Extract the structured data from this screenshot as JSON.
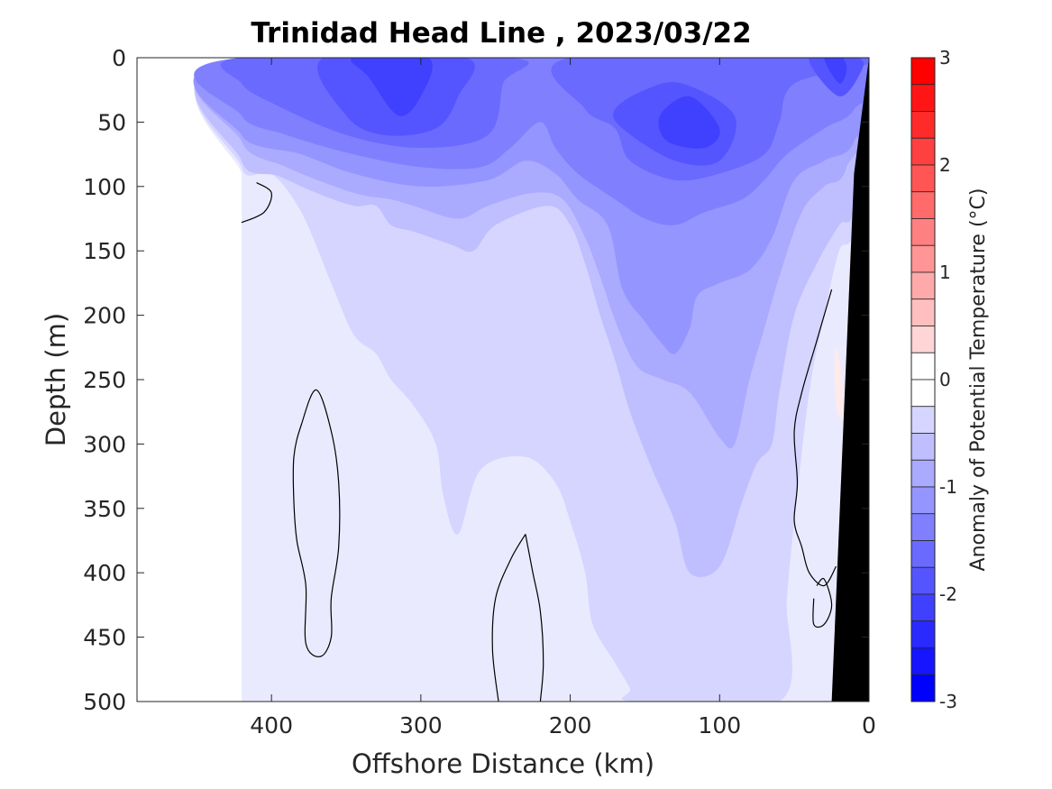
{
  "chart_data": {
    "type": "heatmap",
    "title": "Trinidad Head Line , 2023/03/22",
    "xlabel": "Offshore Distance (km)",
    "ylabel": "Depth (m)",
    "xlim": [
      490,
      0
    ],
    "ylim": [
      500,
      0
    ],
    "x_reversed": true,
    "y_reversed": true,
    "x_ticks": [
      400,
      300,
      200,
      100,
      0
    ],
    "y_ticks": [
      0,
      50,
      100,
      150,
      200,
      250,
      300,
      350,
      400,
      450,
      500
    ],
    "data_extent_km": [
      0,
      420
    ],
    "colorbar": {
      "label": "Anomaly of Potential Temperature (°C)",
      "range": [
        -3,
        3
      ],
      "step": 0.25,
      "ticks": [
        3,
        2,
        1,
        0,
        -1,
        -2,
        -3
      ],
      "colors": {
        "neg_3": "#0000ff",
        "zero": "#ffffff",
        "pos_3": "#ff0000"
      }
    },
    "levels": [
      -2.25,
      -2.0,
      -1.75,
      -1.5,
      -1.25,
      -1.0,
      -0.75,
      -0.5,
      -0.25,
      0.25
    ],
    "contours": [
      {
        "level": -2.25,
        "region": [
          [
            345,
            0
          ],
          [
            335,
            15
          ],
          [
            315,
            45
          ],
          [
            300,
            30
          ],
          [
            295,
            0
          ]
        ]
      },
      {
        "level": -2.25,
        "region": [
          [
            140,
            45
          ],
          [
            120,
            30
          ],
          [
            100,
            55
          ],
          [
            110,
            70
          ],
          [
            135,
            65
          ]
        ]
      },
      {
        "level": -2.25,
        "region": [
          [
            30,
            0
          ],
          [
            20,
            20
          ],
          [
            15,
            10
          ],
          [
            18,
            0
          ]
        ]
      },
      {
        "level": -2.0,
        "region": [
          [
            365,
            0
          ],
          [
            350,
            45
          ],
          [
            325,
            60
          ],
          [
            290,
            55
          ],
          [
            275,
            30
          ],
          [
            270,
            0
          ]
        ]
      },
      {
        "level": -2.0,
        "region": [
          [
            170,
            40
          ],
          [
            150,
            25
          ],
          [
            125,
            20
          ],
          [
            90,
            45
          ],
          [
            100,
            80
          ],
          [
            130,
            80
          ],
          [
            165,
            55
          ]
        ]
      },
      {
        "level": -2.0,
        "region": [
          [
            40,
            0
          ],
          [
            20,
            30
          ],
          [
            5,
            10
          ],
          [
            8,
            0
          ]
        ]
      },
      {
        "level": -1.75,
        "region": [
          [
            420,
            0
          ],
          [
            420,
            20
          ],
          [
            400,
            35
          ],
          [
            350,
            60
          ],
          [
            300,
            70
          ],
          [
            255,
            60
          ],
          [
            245,
            20
          ],
          [
            240,
            0
          ]
        ]
      },
      {
        "level": -1.75,
        "region": [
          [
            200,
            0
          ],
          [
            190,
            40
          ],
          [
            170,
            55
          ],
          [
            160,
            80
          ],
          [
            130,
            95
          ],
          [
            100,
            90
          ],
          [
            70,
            75
          ],
          [
            60,
            50
          ],
          [
            50,
            20
          ],
          [
            0,
            0
          ]
        ]
      },
      {
        "level": -1.5,
        "region": [
          [
            420,
            0
          ],
          [
            420,
            45
          ],
          [
            390,
            60
          ],
          [
            345,
            75
          ],
          [
            300,
            85
          ],
          [
            260,
            85
          ],
          [
            240,
            70
          ],
          [
            220,
            50
          ],
          [
            210,
            70
          ],
          [
            195,
            90
          ],
          [
            170,
            110
          ],
          [
            150,
            125
          ],
          [
            130,
            130
          ],
          [
            110,
            120
          ],
          [
            85,
            110
          ],
          [
            70,
            95
          ],
          [
            55,
            75
          ],
          [
            30,
            55
          ],
          [
            10,
            40
          ],
          [
            5,
            0
          ]
        ]
      },
      {
        "level": -1.25,
        "region": [
          [
            420,
            0
          ],
          [
            420,
            60
          ],
          [
            380,
            75
          ],
          [
            345,
            90
          ],
          [
            300,
            100
          ],
          [
            255,
            95
          ],
          [
            230,
            80
          ],
          [
            210,
            90
          ],
          [
            195,
            110
          ],
          [
            175,
            130
          ],
          [
            165,
            180
          ],
          [
            150,
            205
          ],
          [
            140,
            220
          ],
          [
            130,
            230
          ],
          [
            120,
            210
          ],
          [
            115,
            185
          ],
          [
            100,
            175
          ],
          [
            80,
            165
          ],
          [
            65,
            140
          ],
          [
            50,
            95
          ],
          [
            30,
            80
          ],
          [
            10,
            65
          ],
          [
            5,
            0
          ]
        ]
      },
      {
        "level": -1.0,
        "region": [
          [
            420,
            0
          ],
          [
            420,
            65
          ],
          [
            390,
            85
          ],
          [
            345,
            105
          ],
          [
            320,
            110
          ],
          [
            305,
            115
          ],
          [
            275,
            125
          ],
          [
            255,
            115
          ],
          [
            225,
            105
          ],
          [
            205,
            110
          ],
          [
            190,
            140
          ],
          [
            180,
            170
          ],
          [
            168,
            210
          ],
          [
            155,
            240
          ],
          [
            138,
            250
          ],
          [
            120,
            260
          ],
          [
            100,
            295
          ],
          [
            90,
            300
          ],
          [
            80,
            250
          ],
          [
            70,
            210
          ],
          [
            60,
            170
          ],
          [
            45,
            120
          ],
          [
            30,
            100
          ],
          [
            15,
            85
          ],
          [
            5,
            0
          ]
        ]
      },
      {
        "level": -0.75,
        "region": [
          [
            420,
            0
          ],
          [
            420,
            80
          ],
          [
            395,
            92
          ],
          [
            370,
            105
          ],
          [
            345,
            115
          ],
          [
            330,
            115
          ],
          [
            320,
            130
          ],
          [
            305,
            135
          ],
          [
            280,
            145
          ],
          [
            265,
            150
          ],
          [
            250,
            130
          ],
          [
            215,
            115
          ],
          [
            200,
            130
          ],
          [
            190,
            160
          ],
          [
            180,
            200
          ],
          [
            170,
            235
          ],
          [
            160,
            275
          ],
          [
            145,
            320
          ],
          [
            130,
            360
          ],
          [
            120,
            400
          ],
          [
            100,
            395
          ],
          [
            85,
            345
          ],
          [
            75,
            315
          ],
          [
            65,
            300
          ],
          [
            60,
            260
          ],
          [
            50,
            200
          ],
          [
            35,
            160
          ],
          [
            20,
            130
          ],
          [
            10,
            115
          ],
          [
            5,
            0
          ]
        ]
      },
      {
        "level": -0.5,
        "region": [
          [
            420,
            0
          ],
          [
            420,
            85
          ],
          [
            400,
            90
          ],
          [
            380,
            120
          ],
          [
            360,
            175
          ],
          [
            345,
            215
          ],
          [
            330,
            230
          ],
          [
            320,
            250
          ],
          [
            305,
            270
          ],
          [
            290,
            300
          ],
          [
            285,
            340
          ],
          [
            275,
            370
          ],
          [
            260,
            320
          ],
          [
            230,
            310
          ],
          [
            210,
            330
          ],
          [
            200,
            360
          ],
          [
            190,
            400
          ],
          [
            185,
            440
          ],
          [
            170,
            470
          ],
          [
            160,
            490
          ],
          [
            158,
            500
          ],
          [
            60,
            500
          ],
          [
            55,
            420
          ],
          [
            50,
            360
          ],
          [
            40,
            260
          ],
          [
            30,
            200
          ],
          [
            20,
            150
          ],
          [
            10,
            130
          ],
          [
            5,
            0
          ]
        ]
      },
      {
        "level": -0.25,
        "region": [
          [
            420,
            0
          ],
          [
            420,
            90
          ],
          [
            405,
            95
          ],
          [
            395,
            105
          ],
          [
            385,
            140
          ],
          [
            375,
            180
          ],
          [
            365,
            210
          ],
          [
            355,
            240
          ],
          [
            345,
            290
          ],
          [
            340,
            330
          ],
          [
            330,
            360
          ],
          [
            320,
            380
          ],
          [
            310,
            400
          ],
          [
            300,
            450
          ],
          [
            298,
            500
          ],
          [
            215,
            500
          ],
          [
            205,
            470
          ],
          [
            195,
            440
          ],
          [
            185,
            420
          ],
          [
            170,
            395
          ],
          [
            165,
            370
          ],
          [
            160,
            340
          ],
          [
            150,
            290
          ],
          [
            140,
            240
          ],
          [
            125,
            190
          ],
          [
            100,
            175
          ],
          [
            75,
            175
          ],
          [
            60,
            190
          ],
          [
            45,
            220
          ],
          [
            35,
            200
          ],
          [
            30,
            170
          ],
          [
            20,
            150
          ],
          [
            10,
            140
          ],
          [
            5,
            0
          ]
        ]
      },
      {
        "level": 0.25,
        "region": [
          [
            22,
            225
          ],
          [
            18,
            250
          ],
          [
            18,
            280
          ],
          [
            22,
            270
          ],
          [
            23,
            245
          ]
        ]
      }
    ],
    "zero_contours": [
      [
        [
          410,
          97
        ],
        [
          400,
          105
        ],
        [
          405,
          120
        ],
        [
          420,
          128
        ]
      ],
      [
        [
          370,
          258
        ],
        [
          380,
          285
        ],
        [
          385,
          310
        ],
        [
          385,
          345
        ],
        [
          383,
          375
        ],
        [
          377,
          410
        ],
        [
          377,
          455
        ],
        [
          367,
          465
        ],
        [
          360,
          450
        ],
        [
          360,
          420
        ],
        [
          355,
          380
        ],
        [
          355,
          330
        ],
        [
          360,
          290
        ],
        [
          370,
          258
        ]
      ],
      [
        [
          230,
          370
        ],
        [
          225,
          400
        ],
        [
          220,
          430
        ],
        [
          218,
          470
        ],
        [
          220,
          500
        ]
      ],
      [
        [
          230,
          370
        ],
        [
          240,
          390
        ],
        [
          250,
          420
        ],
        [
          252,
          460
        ],
        [
          248,
          500
        ]
      ],
      [
        [
          25,
          180
        ],
        [
          35,
          220
        ],
        [
          45,
          260
        ],
        [
          50,
          290
        ],
        [
          48,
          330
        ],
        [
          50,
          360
        ],
        [
          45,
          380
        ],
        [
          40,
          400
        ],
        [
          30,
          410
        ],
        [
          22,
          395
        ]
      ],
      [
        [
          35,
          410
        ],
        [
          30,
          405
        ],
        [
          25,
          425
        ],
        [
          30,
          440
        ],
        [
          37,
          440
        ],
        [
          37,
          420
        ]
      ]
    ],
    "bathymetry": [
      [
        0,
        0
      ],
      [
        10,
        90
      ],
      [
        25,
        500
      ],
      [
        0,
        500
      ]
    ]
  }
}
